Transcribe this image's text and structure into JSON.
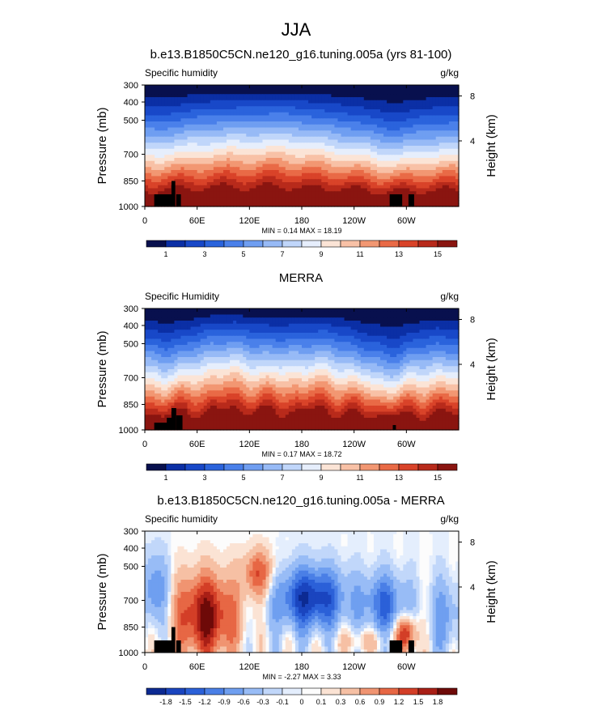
{
  "figure": {
    "title": "JJA"
  },
  "colors": {
    "abs_scale": [
      "#08104e",
      "#0b2fa5",
      "#1848c8",
      "#2a63dc",
      "#4a80ea",
      "#6f9ef1",
      "#97baf6",
      "#c0d6fa",
      "#e6eefc",
      "#fbe4d6",
      "#f8c1a6",
      "#f29772",
      "#e96a46",
      "#d94329",
      "#b82a1b",
      "#8a1510"
    ],
    "diff_scale": [
      "#0c2a92",
      "#1a45bf",
      "#2b60d8",
      "#4a7fe6",
      "#6f9ff0",
      "#98bcf6",
      "#c1d7fa",
      "#e4eefd",
      "#fcfcfc",
      "#fbe3d4",
      "#f6c0a4",
      "#f09471",
      "#e76744",
      "#d33e27",
      "#a91f16",
      "#6e0a08"
    ],
    "land": "#000000"
  },
  "chart_data": [
    {
      "type": "heatmap",
      "title": "b.e13.B1850C5CN.ne120_g16.tuning.005a (yrs 81-100)",
      "left_label": "Specific humidity",
      "right_label": "g/kg",
      "ylabel": "Pressure (mb)",
      "y2label": "Height (km)",
      "xticks": [
        "0",
        "60E",
        "120E",
        "180",
        "120W",
        "60W"
      ],
      "yticks": [
        "300",
        "400",
        "500",
        "700",
        "850",
        "1000"
      ],
      "y2ticks": [
        "8",
        "4"
      ],
      "stats": "MIN =  0.14  MAX = 18.19",
      "colorbar_labels": [
        "1",
        "3",
        "5",
        "7",
        "9",
        "11",
        "13",
        "15"
      ],
      "ylim": [
        1000,
        300
      ],
      "xlim": [
        0,
        360
      ],
      "min": 0.14,
      "max": 18.19
    },
    {
      "type": "heatmap",
      "title": "MERRA",
      "left_label": "Specific Humidity",
      "right_label": "g/kg",
      "ylabel": "Pressure (mb)",
      "y2label": "Height (km)",
      "xticks": [
        "0",
        "60E",
        "120E",
        "180",
        "120W",
        "60W"
      ],
      "yticks": [
        "300",
        "400",
        "500",
        "700",
        "850",
        "1000"
      ],
      "y2ticks": [
        "8",
        "4"
      ],
      "stats": "MIN =  0.17  MAX = 18.72",
      "colorbar_labels": [
        "1",
        "3",
        "5",
        "7",
        "9",
        "11",
        "13",
        "15"
      ],
      "ylim": [
        1000,
        300
      ],
      "xlim": [
        0,
        360
      ],
      "min": 0.17,
      "max": 18.72
    },
    {
      "type": "heatmap",
      "title": "b.e13.B1850C5CN.ne120_g16.tuning.005a - MERRA",
      "left_label": "Specific humidity",
      "right_label": "g/kg",
      "ylabel": "Pressure (mb)",
      "y2label": "Height (km)",
      "xticks": [
        "0",
        "60E",
        "120E",
        "180",
        "120W",
        "60W"
      ],
      "yticks": [
        "300",
        "400",
        "500",
        "700",
        "850",
        "1000"
      ],
      "y2ticks": [
        "8",
        "4"
      ],
      "stats": "MIN = -2.27  MAX =  3.33",
      "colorbar_labels": [
        "-1.8",
        "-1.5",
        "-1.2",
        "-0.9",
        "-0.6",
        "-0.3",
        "-0.1",
        "0",
        "0.1",
        "0.3",
        "0.6",
        "0.9",
        "1.2",
        "1.5",
        "1.8"
      ],
      "ylim": [
        1000,
        300
      ],
      "xlim": [
        0,
        360
      ],
      "min": -2.27,
      "max": 3.33
    }
  ]
}
